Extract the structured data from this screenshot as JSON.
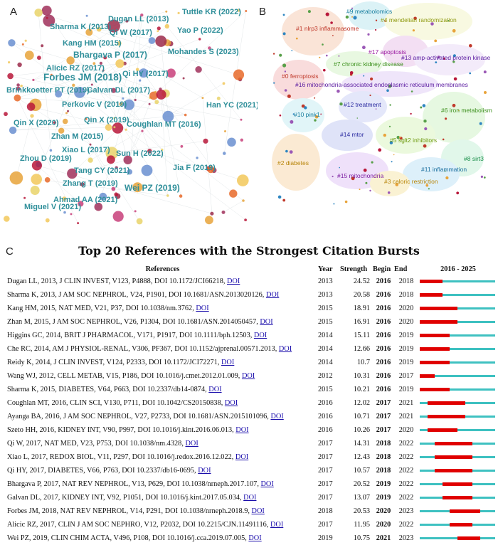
{
  "panels": {
    "a": "A",
    "b": "B",
    "c": "C"
  },
  "network_a": {
    "labels": [
      "Dugan LL (2013)",
      "Tuttle KR (2022)",
      "Sharma K (2013)",
      "Qi W (2017)",
      "Yao P (2022)",
      "Kang HM (2015)",
      "Bhargava P (2017)",
      "Mohandes S (2023)",
      "Alicic RZ (2017)",
      "Forbes JM (2018)",
      "Qi HY (2017)",
      "Brinkkoetter PT (2019)",
      "Galvan DL (2017)",
      "Perkovic V (2019)",
      "Han YC (2021)",
      "Qin X (2020)",
      "Qin X (2019)",
      "Coughlan MT (2016)",
      "Zhan M (2015)",
      "Xiao L (2017)",
      "Sun H (2022)",
      "Zhou D (2019)",
      "Tang CY (2021)",
      "Jia F (2019)",
      "Zhang T (2019)",
      "Wei PZ (2019)",
      "Ahmad AA (2021)",
      "Miguel V (2021)"
    ]
  },
  "network_b": {
    "clusters": [
      "#1 nlrp3 inflammasome",
      "#9 metabolomics",
      "#4 mendelian randomization",
      "#17 apoptosis",
      "#13 amp-activated protein kinase",
      "#7 chronic kidney disease",
      "#0 ferroptosis",
      "#16 mitochondria-associated endoplasmic reticulum membranes",
      "#12 treatment",
      "#10 pink1",
      "#6 iron metabolism",
      "#14 mtor",
      "#5 sglt2 inhibitors",
      "#2 diabetes",
      "#8 sirt3",
      "#11 inflammation",
      "#15 mitochondria",
      "#3 caloric restriction"
    ]
  },
  "title": "Top 20 References with the Strongest Citation Bursts",
  "table": {
    "headers": {
      "ref": "References",
      "year": "Year",
      "strength": "Strength",
      "begin": "Begin",
      "end": "End",
      "range": "2016 - 2025"
    },
    "range_start": 2016,
    "range_end": 2025,
    "rows": [
      {
        "ref": "Dugan LL, 2013, J CLIN INVEST, V123, P4888, DOI 10.1172/JCI66218,",
        "doi": "DOI",
        "year": "2013",
        "strength": "24.52",
        "begin": "2016",
        "end": "2018"
      },
      {
        "ref": "Sharma K, 2013, J AM SOC NEPHROL, V24, P1901, DOI 10.1681/ASN.2013020126,",
        "doi": "DOI",
        "year": "2013",
        "strength": "20.58",
        "begin": "2016",
        "end": "2018"
      },
      {
        "ref": "Kang HM, 2015, NAT MED, V21, P37, DOI 10.1038/nm.3762,",
        "doi": "DOI",
        "year": "2015",
        "strength": "18.91",
        "begin": "2016",
        "end": "2020"
      },
      {
        "ref": "Zhan M, 2015, J AM SOC NEPHROL, V26, P1304, DOI 10.1681/ASN.2014050457,",
        "doi": "DOI",
        "year": "2015",
        "strength": "16.91",
        "begin": "2016",
        "end": "2020"
      },
      {
        "ref": "Higgins GC, 2014, BRIT J PHARMACOL, V171, P1917, DOI 10.1111/bph.12503,",
        "doi": "DOI",
        "year": "2014",
        "strength": "15.11",
        "begin": "2016",
        "end": "2019"
      },
      {
        "ref": "Che RC, 2014, AM J PHYSIOL-RENAL, V306, PF367, DOI 10.1152/ajprenal.00571.2013,",
        "doi": "DOI",
        "year": "2014",
        "strength": "12.66",
        "begin": "2016",
        "end": "2019"
      },
      {
        "ref": "Reidy K, 2014, J CLIN INVEST, V124, P2333, DOI 10.1172/JCI72271,",
        "doi": "DOI",
        "year": "2014",
        "strength": "10.7",
        "begin": "2016",
        "end": "2019"
      },
      {
        "ref": "Wang WJ, 2012, CELL METAB, V15, P186, DOI 10.1016/j.cmet.2012.01.009,",
        "doi": "DOI",
        "year": "2012",
        "strength": "10.31",
        "begin": "2016",
        "end": "2017"
      },
      {
        "ref": "Sharma K, 2015, DIABETES, V64, P663, DOI 10.2337/db14-0874,",
        "doi": "DOI",
        "year": "2015",
        "strength": "10.21",
        "begin": "2016",
        "end": "2019"
      },
      {
        "ref": "Coughlan MT, 2016, CLIN SCI, V130, P711, DOI 10.1042/CS20150838,",
        "doi": "DOI",
        "year": "2016",
        "strength": "12.02",
        "begin": "2017",
        "end": "2021"
      },
      {
        "ref": "Ayanga BA, 2016, J AM SOC NEPHROL, V27, P2733, DOI 10.1681/ASN.2015101096,",
        "doi": "DOI",
        "year": "2016",
        "strength": "10.71",
        "begin": "2017",
        "end": "2021"
      },
      {
        "ref": "Szeto HH, 2016, KIDNEY INT, V90, P997, DOI 10.1016/j.kint.2016.06.013,",
        "doi": "DOI",
        "year": "2016",
        "strength": "10.26",
        "begin": "2017",
        "end": "2020"
      },
      {
        "ref": "Qi W, 2017, NAT MED, V23, P753, DOI 10.1038/nm.4328,",
        "doi": "DOI",
        "year": "2017",
        "strength": "14.31",
        "begin": "2018",
        "end": "2022"
      },
      {
        "ref": "Xiao L, 2017, REDOX BIOL, V11, P297, DOI 10.1016/j.redox.2016.12.022,",
        "doi": "DOI",
        "year": "2017",
        "strength": "12.43",
        "begin": "2018",
        "end": "2022"
      },
      {
        "ref": "Qi HY, 2017, DIABETES, V66, P763, DOI 10.2337/db16-0695,",
        "doi": "DOI",
        "year": "2017",
        "strength": "10.57",
        "begin": "2018",
        "end": "2022"
      },
      {
        "ref": "Bhargava P, 2017, NAT REV NEPHROL, V13, P629, DOI 10.1038/nrneph.2017.107,",
        "doi": "DOI",
        "year": "2017",
        "strength": "20.52",
        "begin": "2019",
        "end": "2022"
      },
      {
        "ref": "Galvan DL, 2017, KIDNEY INT, V92, P1051, DOI 10.1016/j.kint.2017.05.034,",
        "doi": "DOI",
        "year": "2017",
        "strength": "13.07",
        "begin": "2019",
        "end": "2022"
      },
      {
        "ref": "Forbes JM, 2018, NAT REV NEPHROL, V14, P291, DOI 10.1038/nrneph.2018.9,",
        "doi": "DOI",
        "year": "2018",
        "strength": "20.53",
        "begin": "2020",
        "end": "2023"
      },
      {
        "ref": "Alicic RZ, 2017, CLIN J AM SOC NEPHRO, V12, P2032, DOI 10.2215/CJN.11491116,",
        "doi": "DOI",
        "year": "2017",
        "strength": "11.95",
        "begin": "2020",
        "end": "2022"
      },
      {
        "ref": "Wei PZ, 2019, CLIN CHIM ACTA, V496, P108, DOI 10.1016/j.cca.2019.07.005,",
        "doi": "DOI",
        "year": "2019",
        "strength": "10.75",
        "begin": "2021",
        "end": "2023"
      }
    ]
  }
}
